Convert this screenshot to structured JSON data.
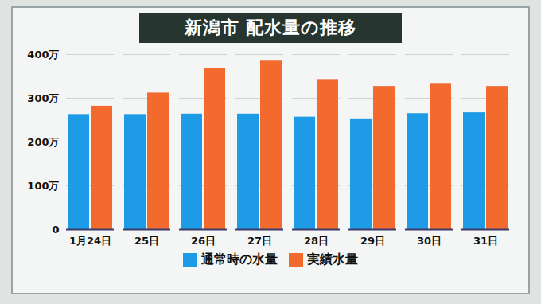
{
  "chart_data": {
    "type": "bar",
    "title": "新潟市 配水量の推移",
    "categories": [
      "1月24日",
      "25日",
      "26日",
      "27日",
      "28日",
      "29日",
      "30日",
      "31日"
    ],
    "series": [
      {
        "name": "通常時の水量",
        "color": "#1d9be6",
        "values": [
          2630000,
          2630000,
          2640000,
          2640000,
          2570000,
          2530000,
          2650000,
          2670000
        ]
      },
      {
        "name": "実績水量",
        "color": "#f26a2e",
        "values": [
          2820000,
          3120000,
          3680000,
          3850000,
          3430000,
          3270000,
          3340000,
          3270000
        ]
      }
    ],
    "ylim": [
      0,
      4000000
    ],
    "yticks": [
      0,
      {
        "value": 1000000,
        "label": "100万"
      },
      {
        "value": 2000000,
        "label": "200万"
      },
      {
        "value": 3000000,
        "label": "300万"
      },
      {
        "value": 4000000,
        "label": "400万"
      }
    ],
    "legend": "bottom"
  }
}
